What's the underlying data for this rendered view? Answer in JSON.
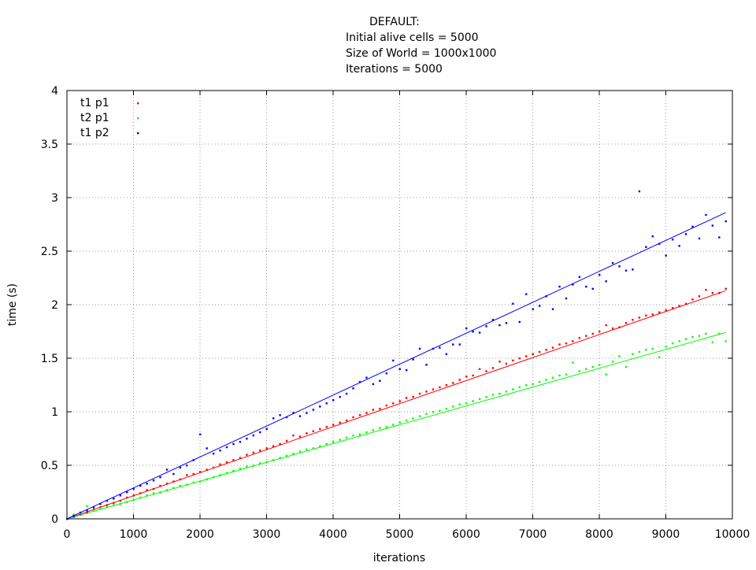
{
  "chart_data": {
    "type": "scatter",
    "title_lines": [
      "DEFAULT:",
      "Initial alive cells = 5000",
      "Size of World = 1000x1000",
      "Iterations = 5000"
    ],
    "xlabel": "iterations",
    "ylabel": "time (s)",
    "xlim": [
      0,
      10000
    ],
    "ylim": [
      0,
      4
    ],
    "xticks": [
      0,
      1000,
      2000,
      3000,
      4000,
      5000,
      6000,
      7000,
      8000,
      9000,
      10000
    ],
    "yticks": [
      0,
      0.5,
      1,
      1.5,
      2,
      2.5,
      3,
      3.5,
      4
    ],
    "ytick_labels": [
      "0",
      "0.5",
      "1",
      "1.5",
      "2",
      "2.5",
      "3",
      "3.5",
      "4"
    ],
    "grid": true,
    "legend_position": "top-left",
    "x": [
      0,
      100,
      200,
      300,
      400,
      500,
      600,
      700,
      800,
      900,
      1000,
      1100,
      1200,
      1300,
      1400,
      1500,
      1600,
      1700,
      1800,
      1900,
      2000,
      2100,
      2200,
      2300,
      2400,
      2500,
      2600,
      2700,
      2800,
      2900,
      3000,
      3100,
      3200,
      3300,
      3400,
      3500,
      3600,
      3700,
      3800,
      3900,
      4000,
      4100,
      4200,
      4300,
      4400,
      4500,
      4600,
      4700,
      4800,
      4900,
      5000,
      5100,
      5200,
      5300,
      5400,
      5500,
      5600,
      5700,
      5800,
      5900,
      6000,
      6100,
      6200,
      6300,
      6400,
      6500,
      6600,
      6700,
      6800,
      6900,
      7000,
      7100,
      7200,
      7300,
      7400,
      7500,
      7600,
      7700,
      7800,
      7900,
      8000,
      8100,
      8200,
      8300,
      8400,
      8500,
      8600,
      8700,
      8800,
      8900,
      9000,
      9100,
      9200,
      9300,
      9400,
      9500,
      9600,
      9700,
      9800,
      9900
    ],
    "series": [
      {
        "name": "t1 p1",
        "color": "#ff0000",
        "values": [
          0.0,
          0.02,
          0.04,
          0.06,
          0.09,
          0.11,
          0.13,
          0.15,
          0.17,
          0.2,
          0.22,
          0.24,
          0.27,
          0.28,
          0.31,
          0.33,
          0.35,
          0.37,
          0.41,
          0.42,
          0.44,
          0.46,
          0.48,
          0.51,
          0.53,
          0.55,
          0.57,
          0.6,
          0.62,
          0.64,
          0.66,
          0.68,
          0.7,
          0.73,
          0.78,
          0.77,
          0.8,
          0.82,
          0.84,
          0.86,
          0.88,
          0.9,
          0.92,
          0.95,
          0.97,
          0.99,
          1.02,
          1.03,
          1.06,
          1.08,
          1.1,
          1.13,
          1.14,
          1.17,
          1.19,
          1.21,
          1.23,
          1.25,
          1.27,
          1.3,
          1.33,
          1.34,
          1.4,
          1.38,
          1.41,
          1.47,
          1.45,
          1.48,
          1.5,
          1.52,
          1.54,
          1.56,
          1.58,
          1.6,
          1.63,
          1.64,
          1.66,
          1.69,
          1.71,
          1.73,
          1.75,
          1.81,
          1.78,
          1.79,
          1.83,
          1.86,
          1.88,
          1.9,
          1.91,
          1.93,
          1.95,
          1.97,
          1.99,
          2.01,
          2.05,
          2.08,
          2.14,
          2.11,
          2.11,
          2.15
        ],
        "fit": [
          [
            0,
            0.0
          ],
          [
            9900,
            2.13
          ]
        ]
      },
      {
        "name": "t2 p1",
        "color": "#00ff00",
        "values": [
          0.0,
          0.04,
          0.05,
          0.12,
          0.08,
          0.1,
          0.11,
          0.13,
          0.14,
          0.16,
          0.18,
          0.2,
          0.22,
          0.24,
          0.25,
          0.27,
          0.29,
          0.31,
          0.32,
          0.34,
          0.35,
          0.37,
          0.39,
          0.41,
          0.43,
          0.45,
          0.47,
          0.49,
          0.5,
          0.52,
          0.53,
          0.55,
          0.57,
          0.59,
          0.61,
          0.63,
          0.65,
          0.66,
          0.68,
          0.7,
          0.72,
          0.74,
          0.76,
          0.78,
          0.79,
          0.81,
          0.83,
          0.85,
          0.86,
          0.88,
          0.9,
          0.92,
          0.94,
          0.96,
          0.98,
          1.0,
          1.01,
          1.03,
          1.05,
          1.07,
          1.08,
          1.1,
          1.12,
          1.14,
          1.16,
          1.17,
          1.19,
          1.21,
          1.23,
          1.25,
          1.26,
          1.28,
          1.3,
          1.32,
          1.34,
          1.35,
          1.46,
          1.38,
          1.4,
          1.42,
          1.44,
          1.35,
          1.47,
          1.52,
          1.42,
          1.54,
          1.56,
          1.58,
          1.59,
          1.51,
          1.61,
          1.64,
          1.66,
          1.68,
          1.7,
          1.71,
          1.73,
          1.65,
          1.73,
          1.66
        ],
        "fit": [
          [
            0,
            0.0
          ],
          [
            9900,
            1.74
          ]
        ]
      },
      {
        "name": "t1 p2",
        "color": "#0000ff",
        "values": [
          0.0,
          0.03,
          0.06,
          0.08,
          0.11,
          0.14,
          0.17,
          0.19,
          0.22,
          0.25,
          0.28,
          0.31,
          0.33,
          0.36,
          0.39,
          0.46,
          0.42,
          0.48,
          0.5,
          0.55,
          0.79,
          0.66,
          0.61,
          0.64,
          0.67,
          0.7,
          0.72,
          0.75,
          0.78,
          0.81,
          0.84,
          0.94,
          0.97,
          0.95,
          0.99,
          0.96,
          0.99,
          1.02,
          1.05,
          1.08,
          1.11,
          1.14,
          1.17,
          1.22,
          1.28,
          1.32,
          1.26,
          1.29,
          1.36,
          1.48,
          1.4,
          1.39,
          1.49,
          1.59,
          1.44,
          1.59,
          1.6,
          1.54,
          1.63,
          1.63,
          1.78,
          1.75,
          1.74,
          1.8,
          1.86,
          1.81,
          1.83,
          2.01,
          1.84,
          2.1,
          1.96,
          1.99,
          2.08,
          1.96,
          2.17,
          2.06,
          2.19,
          2.26,
          2.17,
          2.15,
          2.28,
          2.22,
          2.39,
          2.36,
          2.32,
          2.33,
          3.06,
          2.54,
          2.64,
          2.57,
          2.46,
          2.61,
          2.55,
          2.66,
          2.73,
          2.62,
          2.84,
          2.74,
          2.63,
          2.78
        ],
        "fit": [
          [
            0,
            0.0
          ],
          [
            9900,
            2.86
          ]
        ]
      }
    ]
  }
}
